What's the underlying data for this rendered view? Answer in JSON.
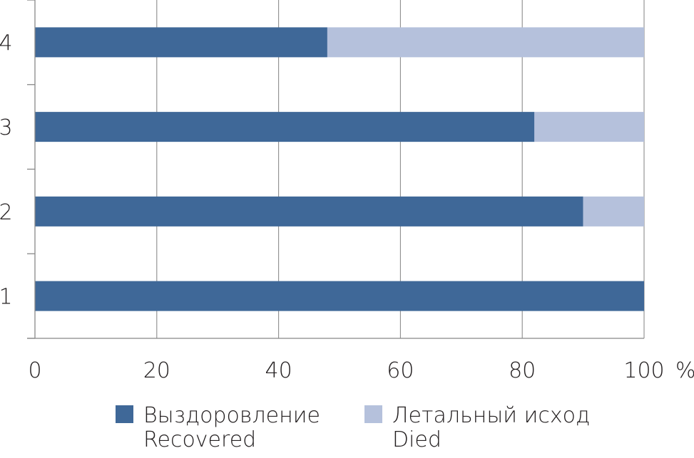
{
  "chart_data": {
    "type": "bar",
    "orientation": "horizontal",
    "stacked": true,
    "categories": [
      "1",
      "2",
      "3",
      "4"
    ],
    "series": [
      {
        "name": "Выздоровление Recovered",
        "name_lines": [
          "Выздоровление",
          "Recovered"
        ],
        "color": "#3f6898",
        "values": [
          100,
          90,
          82,
          48
        ]
      },
      {
        "name": "Летальный исход Died",
        "name_lines": [
          "Летальный исход",
          "Died"
        ],
        "color": "#b5c1dc",
        "values": [
          0,
          10,
          18,
          52
        ]
      }
    ],
    "x_ticks": [
      "0",
      "20",
      "40",
      "60",
      "80",
      "100"
    ],
    "x_unit": "%",
    "xlim": [
      0,
      100
    ],
    "grid": true,
    "legend_position": "bottom"
  }
}
